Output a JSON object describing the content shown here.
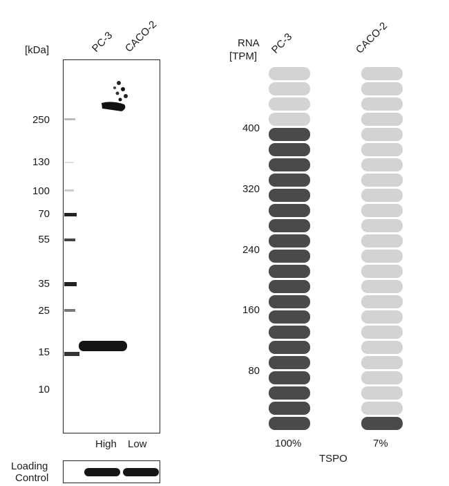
{
  "western_blot": {
    "unit_label": "[kDa]",
    "lanes": [
      "PC-3",
      "CACO-2"
    ],
    "markers": [
      "250",
      "130",
      "100",
      "70",
      "55",
      "35",
      "25",
      "15",
      "10"
    ],
    "expression_labels": [
      "High",
      "Low"
    ],
    "loading_control_label": [
      "Loading",
      "Control"
    ]
  },
  "rna_panel": {
    "axis_label": [
      "RNA",
      "[TPM]"
    ],
    "ticks": [
      "400",
      "320",
      "240",
      "160",
      "80"
    ],
    "samples": [
      {
        "name": "PC-3",
        "percent_label": "100%",
        "filled": 20,
        "total": 24
      },
      {
        "name": "CACO-2",
        "percent_label": "7%",
        "filled": 1,
        "total": 24
      }
    ],
    "gene": "TSPO",
    "colors": {
      "filled": "#4a4a4a",
      "empty": "#d3d3d3"
    }
  }
}
